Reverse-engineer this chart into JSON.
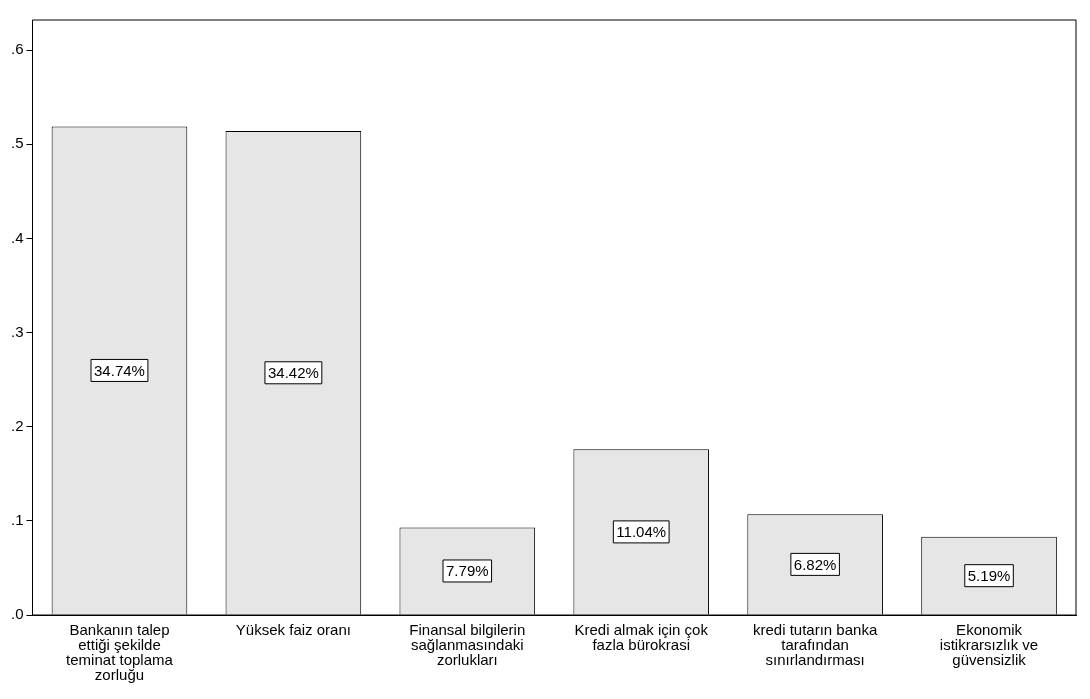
{
  "chart_data": {
    "type": "bar",
    "categories": [
      "Bankanın talep ettiği şekilde teminat toplama zorluğu",
      "Yüksek faiz oranı",
      "Finansal bilgilerin sağlanmasındaki zorlukları",
      "Kredi almak için çok fazla bürokrasi",
      "kredi tutarın banka tarafından sınırlandırması",
      "Ekonomik istikrarsızlık ve güvensizlik"
    ],
    "values": [
      0.519,
      0.514,
      0.093,
      0.176,
      0.107,
      0.083
    ],
    "annotations": [
      "34.74%",
      "34.42%",
      "7.79%",
      "11.04%",
      "6.82%",
      "5.19%"
    ],
    "color": "#e6e6e6",
    "ylim": [
      0,
      0.632
    ],
    "yticks": [
      {
        "value": 0,
        "label": ".0"
      },
      {
        "value": 0.1,
        "label": ".1"
      },
      {
        "value": 0.2,
        "label": ".2"
      },
      {
        "value": 0.3,
        "label": ".3"
      },
      {
        "value": 0.4,
        "label": ".4"
      },
      {
        "value": 0.5,
        "label": ".5"
      },
      {
        "value": 0.6,
        "label": ".6"
      }
    ],
    "grid": false,
    "legend": false
  }
}
